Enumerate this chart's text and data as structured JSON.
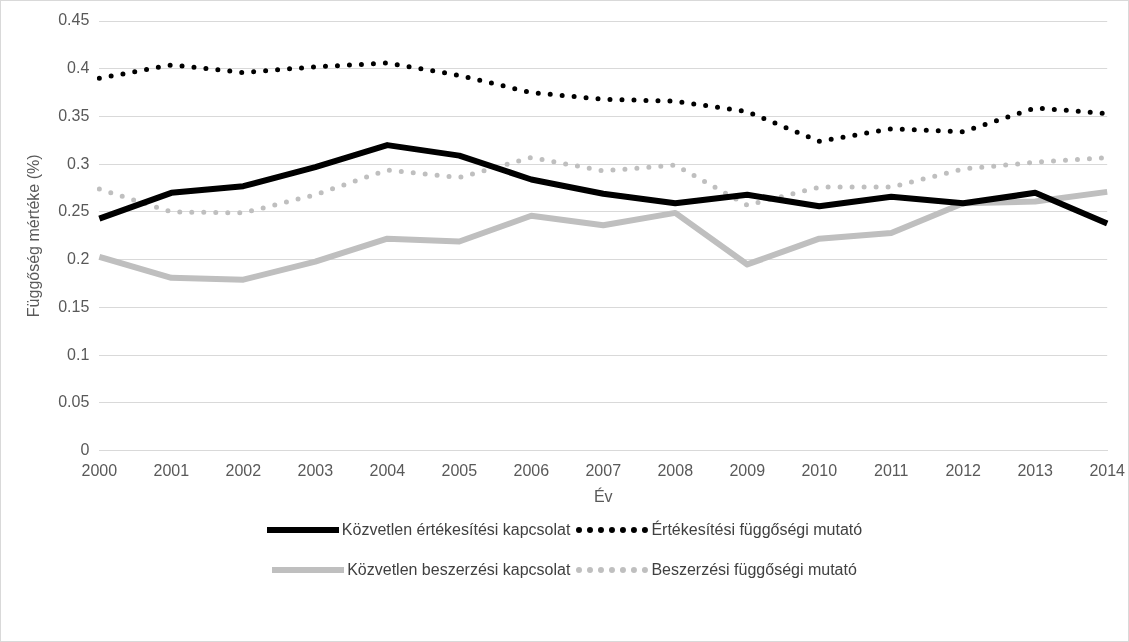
{
  "chart_data": {
    "type": "line",
    "xlabel": "Év",
    "ylabel": "Függőség mértéke (%)",
    "categories": [
      "2000",
      "2001",
      "2002",
      "2003",
      "2004",
      "2005",
      "2006",
      "2007",
      "2008",
      "2009",
      "2010",
      "2011",
      "2012",
      "2013",
      "2014"
    ],
    "series": [
      {
        "name": "Közvetlen értékesítési kapcsolat",
        "color": "#000000",
        "line_style": "solid",
        "values": [
          0.243,
          0.27,
          0.277,
          0.297,
          0.32,
          0.309,
          0.284,
          0.269,
          0.259,
          0.268,
          0.256,
          0.266,
          0.259,
          0.27,
          0.238
        ]
      },
      {
        "name": "Értékesítési függőségi mutató",
        "color": "#000000",
        "line_style": "dotted",
        "values": [
          0.39,
          0.404,
          0.396,
          0.402,
          0.406,
          0.393,
          0.375,
          0.368,
          0.366,
          0.355,
          0.324,
          0.337,
          0.334,
          0.359,
          0.353
        ]
      },
      {
        "name": "Közvetlen beszerzési kapcsolat",
        "color": "#bfbfbf",
        "line_style": "solid",
        "values": [
          0.203,
          0.181,
          0.179,
          0.198,
          0.222,
          0.219,
          0.246,
          0.236,
          0.249,
          0.195,
          0.222,
          0.228,
          0.259,
          0.261,
          0.271
        ]
      },
      {
        "name": "Beszerzési függőségi mutató",
        "color": "#bfbfbf",
        "line_style": "dotted",
        "values": [
          0.274,
          0.25,
          0.249,
          0.268,
          0.294,
          0.286,
          0.307,
          0.293,
          0.299,
          0.257,
          0.276,
          0.276,
          0.295,
          0.302,
          0.307
        ]
      }
    ],
    "ylim": [
      0,
      0.45
    ],
    "yticks": [
      0,
      0.05,
      0.1,
      0.15,
      0.2,
      0.25,
      0.3,
      0.35,
      0.4,
      0.45
    ],
    "grid": "y",
    "legend": "bottom",
    "marker": "none"
  }
}
